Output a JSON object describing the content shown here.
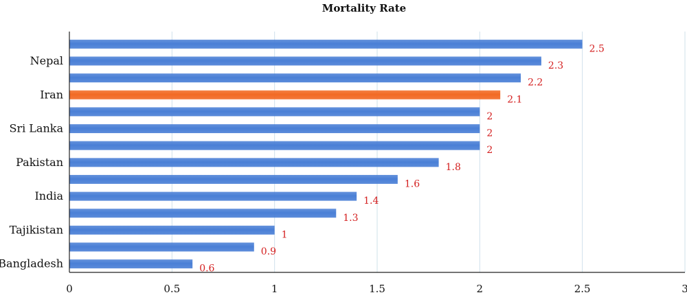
{
  "chart_data": {
    "type": "bar",
    "orientation": "horizontal",
    "title": "Mortality Rate",
    "categories": [
      "",
      "Nepal",
      "",
      "Iran",
      "",
      "Sri Lanka",
      "",
      "Pakistan",
      "",
      "India",
      "",
      "Tajikistan",
      "",
      "Bangladesh"
    ],
    "values": [
      2.5,
      2.3,
      2.2,
      2.1,
      2,
      2,
      2,
      1.8,
      1.6,
      1.4,
      1.3,
      1,
      0.9,
      0.6
    ],
    "value_labels": [
      "2.5",
      "2.3",
      "2.2",
      "2.1",
      "2",
      "2",
      "2",
      "1.8",
      "1.6",
      "1.4",
      "1.3",
      "1",
      "0.9",
      "0.6"
    ],
    "highlight_index": 3,
    "xlim": [
      0,
      3
    ],
    "xticks": [
      0,
      0.5,
      1,
      1.5,
      2,
      2.5,
      3
    ],
    "xtick_labels": [
      "0",
      "0.5",
      "1",
      "1.5",
      "2",
      "2.5",
      "3"
    ],
    "xlabel": "",
    "ylabel": "",
    "grid": "vertical",
    "legend": "none",
    "colors": {
      "bar": "#4a7fd6",
      "highlight": "#f26a24",
      "data_label": "#d42020",
      "grid": "#cfe0ea",
      "axis": "#222222"
    }
  }
}
